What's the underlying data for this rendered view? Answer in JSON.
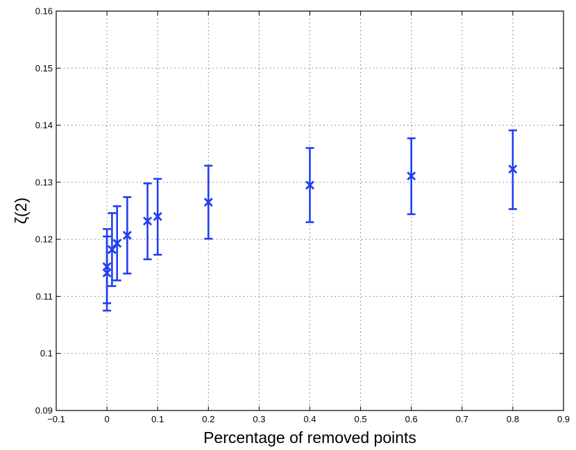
{
  "chart_data": {
    "type": "scatter",
    "title": "",
    "xlabel": "Percentage of removed points",
    "ylabel": "ζ(2)",
    "xlim": [
      -0.1,
      0.9
    ],
    "ylim": [
      0.09,
      0.16
    ],
    "x_ticks": [
      "−0.1",
      "0",
      "0.1",
      "0.2",
      "0.3",
      "0.4",
      "0.5",
      "0.6",
      "0.7",
      "0.8",
      "0.9"
    ],
    "y_ticks": [
      "0.09",
      "0.1",
      "0.11",
      "0.12",
      "0.13",
      "0.14",
      "0.15",
      "0.16"
    ],
    "grid": true,
    "series_color": "#1f3ff0",
    "marker": "x",
    "points": [
      {
        "x": 0.0,
        "y": 0.1141,
        "low": 0.1075,
        "high": 0.1205
      },
      {
        "x": 0.0,
        "y": 0.1152,
        "low": 0.1088,
        "high": 0.1218
      },
      {
        "x": 0.01,
        "y": 0.1182,
        "low": 0.1118,
        "high": 0.1246
      },
      {
        "x": 0.02,
        "y": 0.1193,
        "low": 0.1128,
        "high": 0.1258
      },
      {
        "x": 0.04,
        "y": 0.1207,
        "low": 0.114,
        "high": 0.1274
      },
      {
        "x": 0.08,
        "y": 0.1232,
        "low": 0.1165,
        "high": 0.1298
      },
      {
        "x": 0.1,
        "y": 0.124,
        "low": 0.1173,
        "high": 0.1306
      },
      {
        "x": 0.2,
        "y": 0.1265,
        "low": 0.1201,
        "high": 0.1329
      },
      {
        "x": 0.4,
        "y": 0.1295,
        "low": 0.123,
        "high": 0.136
      },
      {
        "x": 0.6,
        "y": 0.1311,
        "low": 0.1244,
        "high": 0.1377
      },
      {
        "x": 0.8,
        "y": 0.1323,
        "low": 0.1253,
        "high": 0.1391
      }
    ]
  }
}
